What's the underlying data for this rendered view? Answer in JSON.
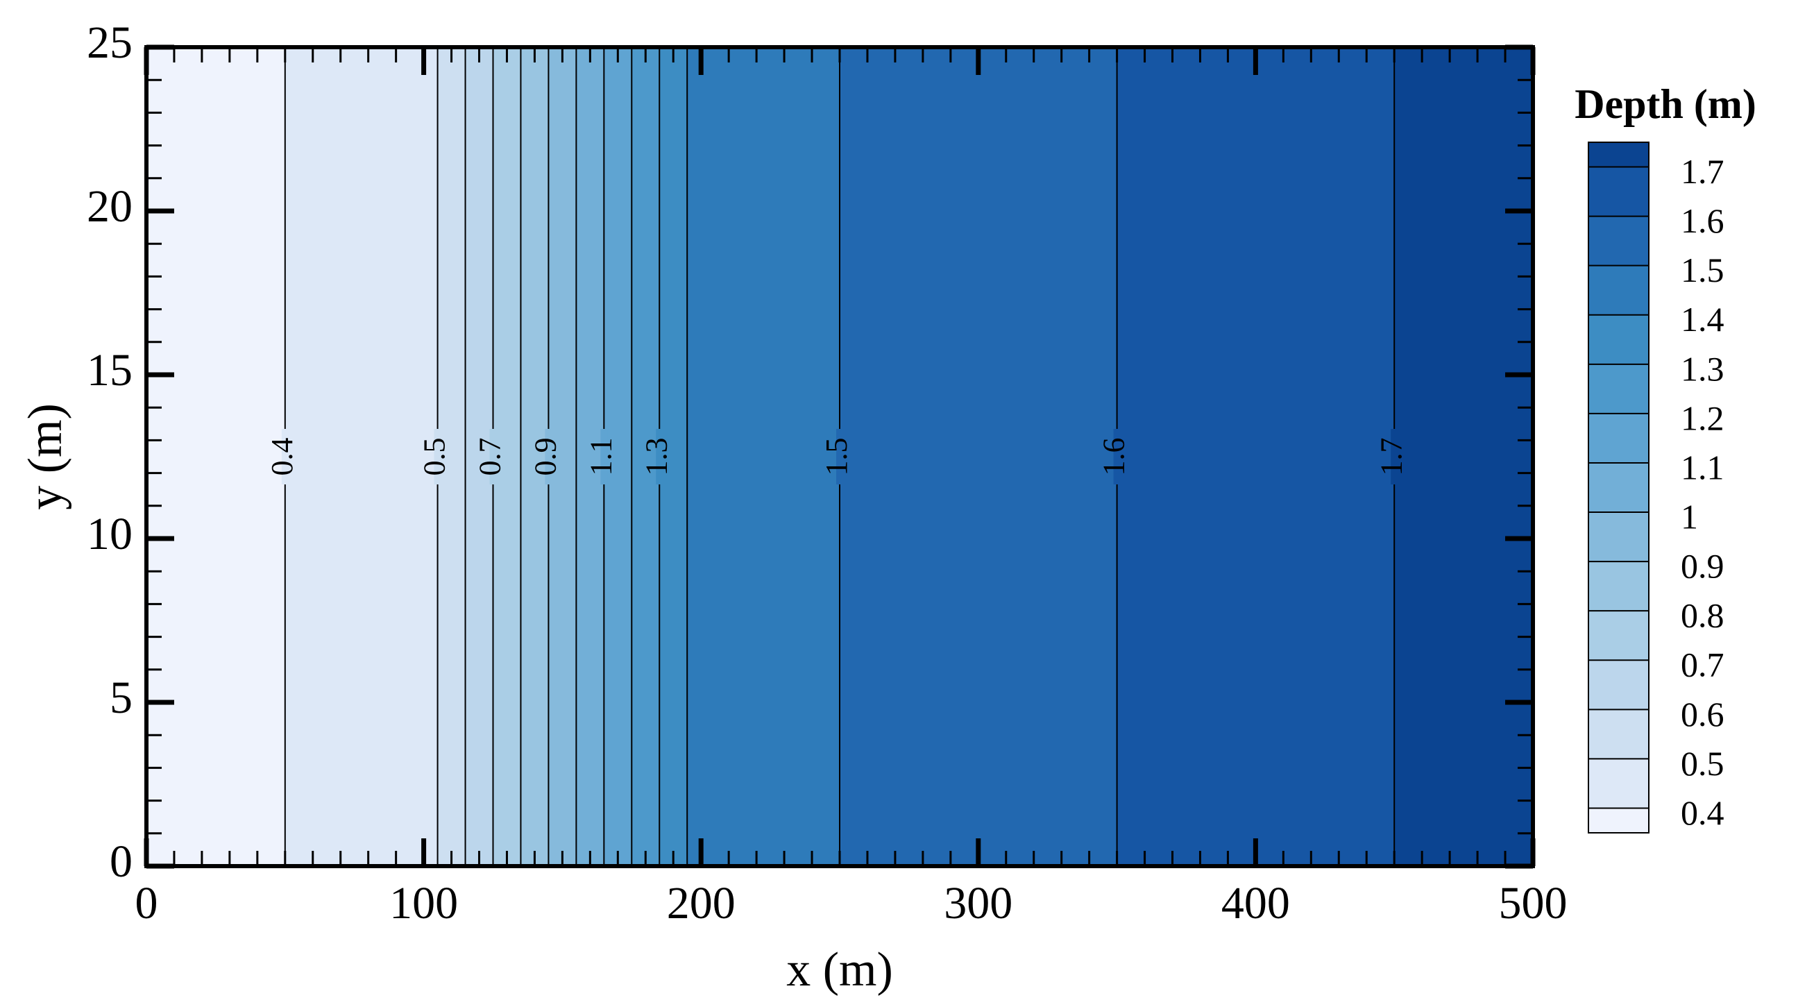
{
  "chart_data": {
    "type": "contour",
    "xlabel": "x (m)",
    "ylabel": "y (m)",
    "xlim": [
      0,
      500
    ],
    "ylim": [
      0,
      25
    ],
    "xticks": [
      0,
      100,
      200,
      300,
      400,
      500
    ],
    "yticks": [
      0,
      5,
      10,
      15,
      20,
      25
    ],
    "xminorticks": [
      10,
      20,
      30,
      40,
      50,
      60,
      70,
      80,
      90,
      110,
      120,
      130,
      140,
      150,
      160,
      170,
      180,
      190,
      210,
      220,
      230,
      240,
      250,
      260,
      270,
      280,
      290,
      310,
      320,
      330,
      340,
      350,
      360,
      370,
      380,
      390,
      410,
      420,
      430,
      440,
      450,
      460,
      470,
      480,
      490
    ],
    "yminorticks": [
      1,
      2,
      3,
      4,
      6,
      7,
      8,
      9,
      11,
      12,
      13,
      14,
      16,
      17,
      18,
      19,
      21,
      22,
      23,
      24
    ],
    "contours": {
      "x": [
        50,
        105,
        115,
        125,
        135,
        145,
        155,
        165,
        175,
        185,
        195,
        250,
        350,
        450
      ],
      "levels": [
        0.4,
        0.5,
        0.6,
        0.7,
        0.8,
        0.9,
        1,
        1.1,
        1.2,
        1.3,
        1.4,
        1.5,
        1.6,
        1.7
      ]
    },
    "contour_labels": [
      0.4,
      0.5,
      0.7,
      0.9,
      1.1,
      1.3,
      1.5,
      1.6,
      1.7
    ],
    "colors": [
      "#eff3fd",
      "#dde8f7",
      "#cddff1",
      "#bcd6ec",
      "#aacee6",
      "#99c5e1",
      "#86badc",
      "#72afd7",
      "#5fa4d2",
      "#4d99cb",
      "#3d8dc3",
      "#2e7bba",
      "#2268b0",
      "#1656a4",
      "#0b4491"
    ],
    "colorbar": {
      "title": "Depth (m)",
      "ticks": [
        0.4,
        0.5,
        0.6,
        0.7,
        0.8,
        0.9,
        1,
        1.1,
        1.2,
        1.3,
        1.4,
        1.5,
        1.6,
        1.7
      ]
    }
  }
}
